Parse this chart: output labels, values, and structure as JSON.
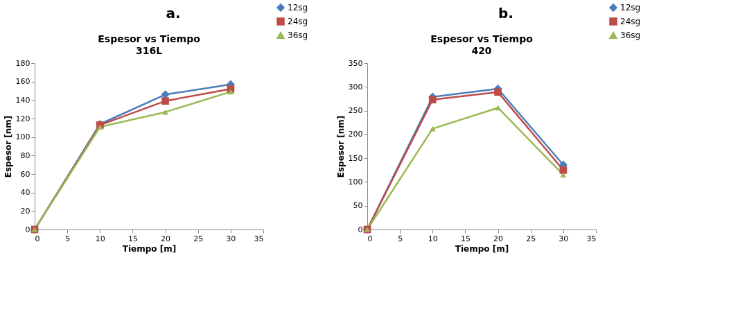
{
  "chart_data": [
    {
      "type": "line",
      "title": "Espesor vs Tiempo",
      "subtitle": "316L",
      "annotations": [
        "a."
      ],
      "xlabel": "Tiempo [m]",
      "ylabel": "Espesor [nm]",
      "x": [
        0,
        10,
        20,
        30
      ],
      "xlim": [
        0,
        35
      ],
      "xticks": [
        0,
        5,
        10,
        15,
        20,
        25,
        30,
        35
      ],
      "ylim": [
        0,
        180
      ],
      "yticks": [
        0,
        20,
        40,
        60,
        80,
        100,
        120,
        140,
        160,
        180
      ],
      "grid": false,
      "legend": "right",
      "series": [
        {
          "name": "12sg",
          "color": "#4a7ebb",
          "marker": "diamond",
          "values": [
            0,
            114,
            146,
            157
          ]
        },
        {
          "name": "24sg",
          "color": "#be4b48",
          "marker": "square",
          "values": [
            0,
            113,
            139,
            152
          ]
        },
        {
          "name": "36sg",
          "color": "#98b954",
          "marker": "triangle",
          "values": [
            0,
            111,
            127,
            149
          ]
        }
      ]
    },
    {
      "type": "line",
      "title": "Espesor vs Tiempo",
      "subtitle": "420",
      "annotations": [
        "b."
      ],
      "xlabel": "Tiempo [m]",
      "ylabel": "Espesor [nm]",
      "x": [
        0,
        10,
        20,
        30
      ],
      "xlim": [
        0,
        35
      ],
      "xticks": [
        0,
        5,
        10,
        15,
        20,
        25,
        30,
        35
      ],
      "ylim": [
        0,
        350
      ],
      "yticks": [
        0,
        50,
        100,
        150,
        200,
        250,
        300,
        350
      ],
      "grid": false,
      "legend": "right",
      "series": [
        {
          "name": "12sg",
          "color": "#4a7ebb",
          "marker": "diamond",
          "values": [
            0,
            279,
            296,
            136
          ]
        },
        {
          "name": "24sg",
          "color": "#be4b48",
          "marker": "square",
          "values": [
            0,
            273,
            289,
            125
          ]
        },
        {
          "name": "36sg",
          "color": "#98b954",
          "marker": "triangle",
          "values": [
            0,
            212,
            256,
            115
          ]
        }
      ]
    }
  ]
}
